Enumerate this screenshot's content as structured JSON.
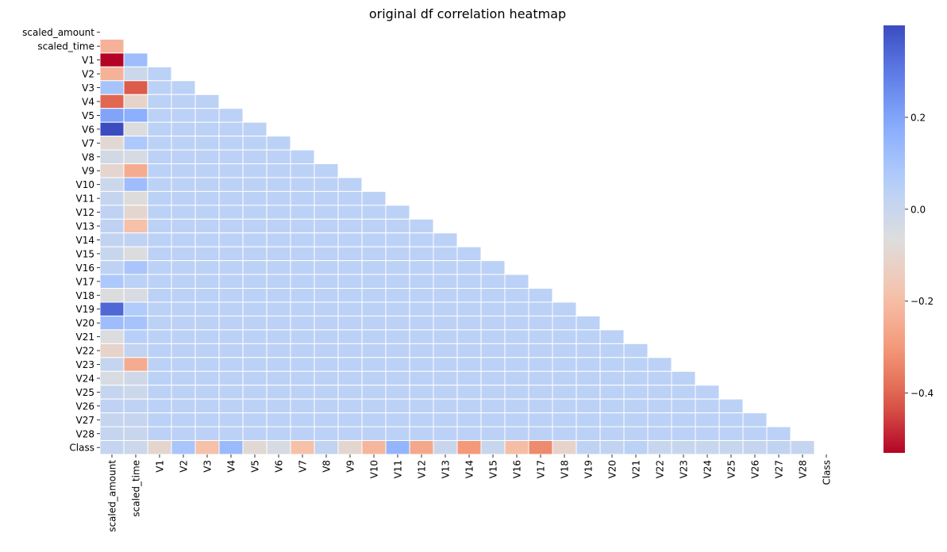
{
  "chart_data": {
    "type": "heatmap",
    "title": "original df correlation heatmap",
    "xlabel": "",
    "ylabel": "",
    "labels": [
      "scaled_amount",
      "scaled_time",
      "V1",
      "V2",
      "V3",
      "V4",
      "V5",
      "V6",
      "V7",
      "V8",
      "V9",
      "V10",
      "V11",
      "V12",
      "V13",
      "V14",
      "V15",
      "V16",
      "V17",
      "V18",
      "V19",
      "V20",
      "V21",
      "V22",
      "V23",
      "V24",
      "V25",
      "V26",
      "V27",
      "V28",
      "Class"
    ],
    "mask": "upper triangle incl. diagonal",
    "colormap": "coolwarm",
    "vmin": -0.53,
    "vmax": 0.4,
    "colorbar_ticks": [
      0.2,
      0.0,
      -0.2,
      -0.4
    ],
    "colorbar_tick_labels": [
      "0.2",
      "0.0",
      "−0.2",
      "−0.4"
    ],
    "cell_border_color": "#ffffff",
    "amount_column": [
      -0.23,
      -0.53,
      -0.23,
      0.1,
      -0.4,
      0.2,
      0.4,
      -0.09,
      -0.03,
      -0.1,
      -0.01,
      0.01,
      0.03,
      0.03,
      0.02,
      0.0,
      0.03,
      0.08,
      -0.06,
      0.34,
      0.12,
      -0.06,
      -0.11,
      0.01,
      -0.05,
      0.01,
      0.03,
      0.01,
      0.01
    ],
    "time_column": [
      0.12,
      -0.01,
      -0.42,
      -0.11,
      0.17,
      -0.06,
      0.08,
      -0.04,
      -0.25,
      0.12,
      -0.07,
      -0.1,
      -0.19,
      0.03,
      -0.06,
      0.09,
      0.04,
      -0.05,
      0.07,
      0.1,
      0.05,
      0.02,
      -0.25,
      -0.02,
      -0.01,
      0.03,
      0.01,
      0.0
    ],
    "class_row": [
      0.01,
      -0.01,
      -0.1,
      0.09,
      -0.19,
      0.13,
      -0.09,
      -0.04,
      -0.19,
      0.02,
      -0.1,
      -0.22,
      0.15,
      -0.26,
      -0.0,
      -0.3,
      -0.0,
      -0.2,
      -0.33,
      -0.11,
      0.03,
      0.02,
      0.04,
      0.0,
      0.0,
      -0.0,
      0.0,
      0.01,
      0.02,
      0.01
    ],
    "other_pairs_value": 0.04
  }
}
